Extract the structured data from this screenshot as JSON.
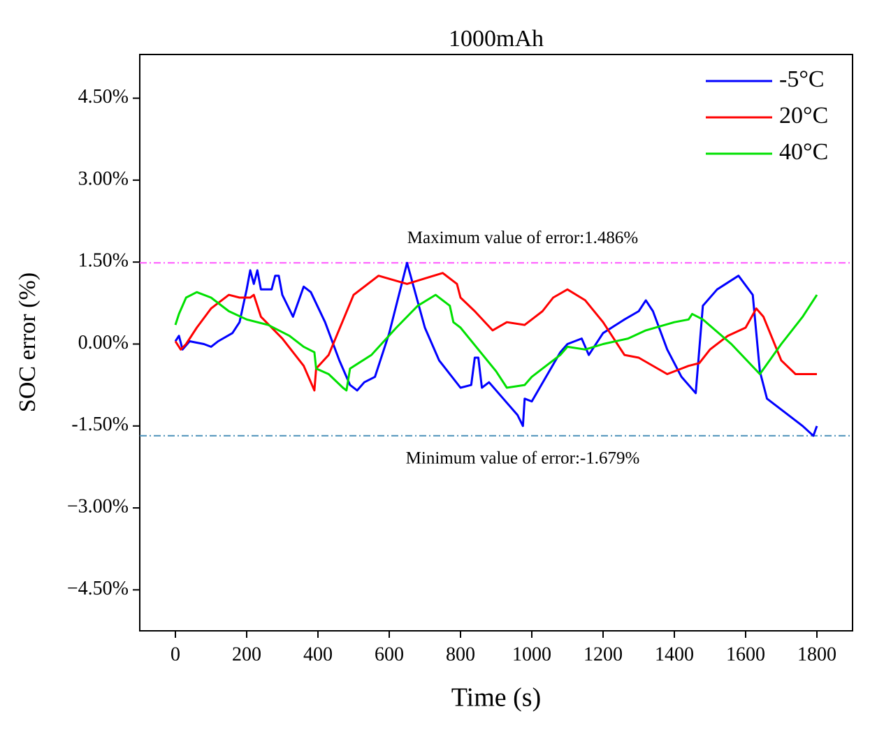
{
  "chart_data": {
    "type": "line",
    "title": "1000mAh",
    "xlabel": "Time (s)",
    "ylabel": "SOC error (%)",
    "xlim": [
      -100,
      1900
    ],
    "ylim": [
      -5.25,
      5.3
    ],
    "xticks": [
      0,
      200,
      400,
      600,
      800,
      1000,
      1200,
      1400,
      1600,
      1800
    ],
    "yticks": [
      {
        "value": -4.5,
        "label": "−4.50%"
      },
      {
        "value": -3,
        "label": "−3.00%"
      },
      {
        "value": -1.5,
        "label": "-1.50%"
      },
      {
        "value": 0,
        "label": "0.00%"
      },
      {
        "value": 1.5,
        "label": "1.50%"
      },
      {
        "value": 3,
        "label": "3.00%"
      },
      {
        "value": 4.5,
        "label": "4.50%"
      }
    ],
    "legend": "upper right",
    "reference_lines": [
      {
        "value": 1.486,
        "label": "Maximum value of error:1.486%",
        "color": "#ff55ff"
      },
      {
        "value": -1.679,
        "label": "Minimum value of error:-1.679%",
        "color": "#4a90b8"
      }
    ],
    "series": [
      {
        "name": "-5°C",
        "color": "#0000ff",
        "x": [
          0,
          10,
          20,
          40,
          80,
          100,
          120,
          160,
          180,
          200,
          210,
          220,
          230,
          240,
          270,
          280,
          290,
          300,
          330,
          360,
          380,
          420,
          460,
          490,
          510,
          530,
          560,
          600,
          650,
          700,
          740,
          800,
          830,
          840,
          850,
          860,
          880,
          920,
          960,
          975,
          980,
          1000,
          1040,
          1080,
          1100,
          1140,
          1160,
          1200,
          1260,
          1300,
          1320,
          1340,
          1380,
          1420,
          1460,
          1480,
          1520,
          1580,
          1620,
          1640,
          1660,
          1700,
          1760,
          1790,
          1800
        ],
        "values": [
          0.05,
          0.15,
          -0.1,
          0.05,
          0,
          -0.05,
          0.05,
          0.2,
          0.4,
          1.0,
          1.35,
          1.1,
          1.35,
          1.0,
          1.0,
          1.25,
          1.25,
          0.9,
          0.5,
          1.05,
          0.95,
          0.4,
          -0.3,
          -0.75,
          -0.85,
          -0.7,
          -0.6,
          0.2,
          1.486,
          0.3,
          -0.3,
          -0.8,
          -0.75,
          -0.25,
          -0.25,
          -0.8,
          -0.7,
          -1.0,
          -1.3,
          -1.5,
          -1.0,
          -1.05,
          -0.6,
          -0.15,
          0,
          0.1,
          -0.2,
          0.2,
          0.45,
          0.6,
          0.8,
          0.6,
          -0.1,
          -0.6,
          -0.9,
          0.7,
          1.0,
          1.25,
          0.9,
          -0.5,
          -1.0,
          -1.2,
          -1.5,
          -1.679,
          -1.5
        ]
      },
      {
        "name": "20°C",
        "color": "#ff0000",
        "x": [
          0,
          15,
          30,
          60,
          100,
          150,
          180,
          210,
          220,
          240,
          300,
          360,
          390,
          395,
          430,
          500,
          570,
          650,
          700,
          750,
          790,
          800,
          840,
          890,
          930,
          980,
          1030,
          1060,
          1100,
          1150,
          1200,
          1260,
          1300,
          1380,
          1420,
          1440,
          1470,
          1500,
          1550,
          1600,
          1630,
          1650,
          1700,
          1740,
          1800
        ],
        "values": [
          0.05,
          -0.1,
          0,
          0.3,
          0.65,
          0.9,
          0.85,
          0.85,
          0.9,
          0.5,
          0.1,
          -0.4,
          -0.85,
          -0.45,
          -0.2,
          0.9,
          1.25,
          1.1,
          1.2,
          1.3,
          1.1,
          0.85,
          0.6,
          0.25,
          0.4,
          0.35,
          0.6,
          0.85,
          1.0,
          0.8,
          0.4,
          -0.2,
          -0.25,
          -0.55,
          -0.45,
          -0.4,
          -0.35,
          -0.1,
          0.15,
          0.3,
          0.65,
          0.5,
          -0.3,
          -0.55,
          -0.55
        ]
      },
      {
        "name": "40°C",
        "color": "#00e000",
        "x": [
          0,
          10,
          30,
          60,
          100,
          150,
          200,
          260,
          320,
          360,
          390,
          395,
          430,
          470,
          480,
          490,
          550,
          620,
          680,
          730,
          770,
          780,
          800,
          850,
          900,
          930,
          980,
          1000,
          1040,
          1080,
          1100,
          1150,
          1200,
          1270,
          1320,
          1400,
          1440,
          1450,
          1480,
          1560,
          1640,
          1700,
          1760,
          1800
        ],
        "values": [
          0.35,
          0.55,
          0.85,
          0.95,
          0.85,
          0.6,
          0.45,
          0.35,
          0.15,
          -0.05,
          -0.15,
          -0.45,
          -0.55,
          -0.8,
          -0.85,
          -0.45,
          -0.2,
          0.3,
          0.7,
          0.9,
          0.7,
          0.4,
          0.3,
          -0.1,
          -0.5,
          -0.8,
          -0.75,
          -0.6,
          -0.4,
          -0.2,
          -0.05,
          -0.1,
          0,
          0.1,
          0.25,
          0.4,
          0.45,
          0.55,
          0.45,
          0,
          -0.55,
          0,
          0.5,
          0.9
        ]
      }
    ]
  }
}
